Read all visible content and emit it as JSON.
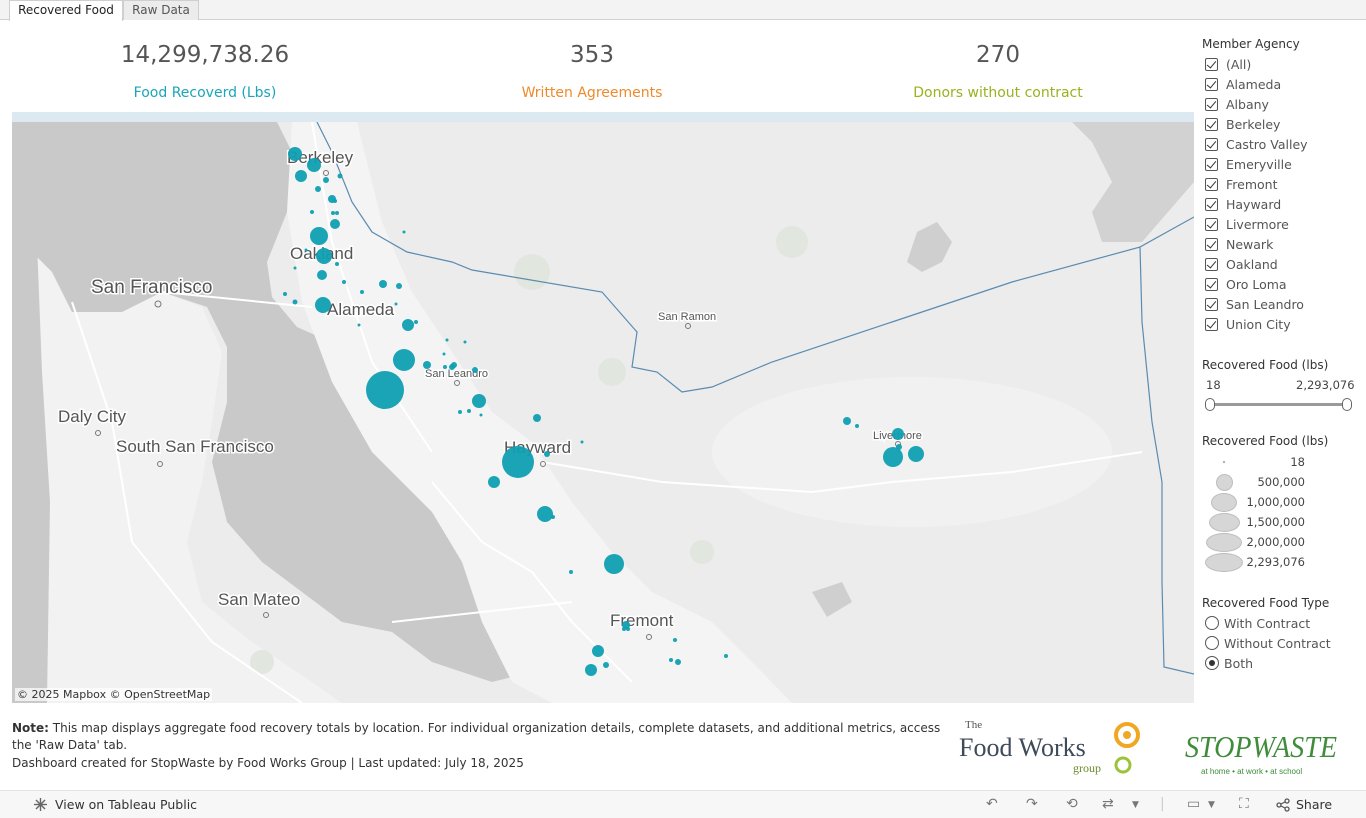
{
  "tabs": [
    {
      "label": "Recovered Food",
      "active": true
    },
    {
      "label": "Raw Data",
      "active": false
    }
  ],
  "kpis": [
    {
      "value": "14,299,738.26",
      "label": "Food Recoverd (Lbs)",
      "color": "#1aa6b7"
    },
    {
      "value": "353",
      "label": "Written Agreements",
      "color": "#ee8a2b"
    },
    {
      "value": "270",
      "label": "Donors without contract",
      "color": "#9cb11f"
    }
  ],
  "map": {
    "place_labels": [
      "Berkeley",
      "Oakland",
      "Alameda",
      "San Francisco",
      "San Leandro",
      "San Ramon",
      "Daly City",
      "South San Francisco",
      "Hayward",
      "Livermore",
      "San Mateo",
      "Fremont"
    ],
    "attribution": "© 2025 Mapbox  © OpenStreetMap",
    "marker_color": "#0f9fb1"
  },
  "filters": {
    "member_agency_title": "Member Agency",
    "member_agencies": [
      "(All)",
      "Alameda",
      "Albany",
      "Berkeley",
      "Castro Valley",
      "Emeryville",
      "Fremont",
      "Hayward",
      "Livermore",
      "Newark",
      "Oakland",
      "Oro Loma",
      "San Leandro",
      "Union City"
    ],
    "range_title": "Recovered Food (lbs)",
    "range_min": "18",
    "range_max": "2,293,076",
    "size_legend_title": "Recovered Food (lbs)",
    "size_legend": [
      "18",
      "500,000",
      "1,000,000",
      "1,500,000",
      "2,000,000",
      "2,293,076"
    ],
    "type_title": "Recovered Food Type",
    "type_options": [
      {
        "label": "With Contract",
        "selected": false
      },
      {
        "label": "Without Contract",
        "selected": false
      },
      {
        "label": "Both",
        "selected": true
      }
    ]
  },
  "footer": {
    "note_label": "Note:",
    "note_text": " This map displays aggregate food recovery totals by location. For individual organization details, complete datasets, and additional metrics, access the 'Raw Data' tab.",
    "credit": "Dashboard created for StopWaste by Food Works Group | Last updated: July 18, 2025",
    "logo1_line1": "The",
    "logo1_line2": "Food Works",
    "logo1_line3": "group",
    "logo2_text": "STOPWASTE",
    "logo2_tagline": "at home • at work • at school"
  },
  "toolbar": {
    "view_label": "View on Tableau Public",
    "share_label": "Share"
  }
}
